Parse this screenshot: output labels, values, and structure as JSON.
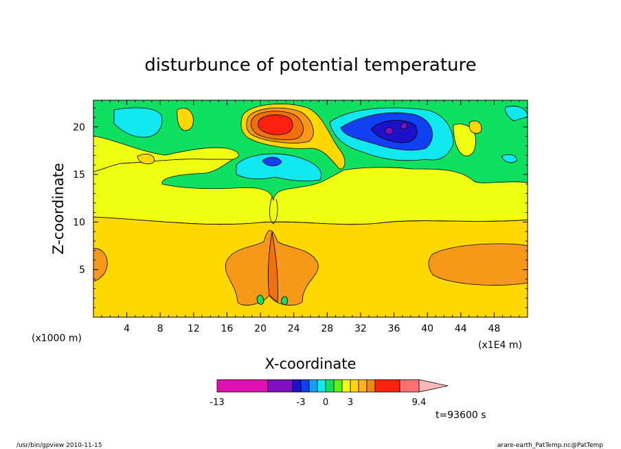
{
  "chart_data": {
    "type": "heatmap",
    "title": "disturbunce of potential temperature",
    "xlabel": "X-coordinate",
    "ylabel": "Z-coordinate",
    "x_unit_left": "(x1000 m)",
    "x_unit_right": "(x1E4 m)",
    "xlim": [
      0,
      52
    ],
    "ylim": [
      0,
      22.8
    ],
    "x_ticks": [
      4,
      8,
      12,
      16,
      20,
      24,
      28,
      32,
      36,
      40,
      44,
      48
    ],
    "y_ticks": [
      5,
      10,
      15,
      20
    ],
    "time_label": "t=93600 s",
    "colorbar": {
      "labels": [
        "-13",
        "-3",
        "0",
        "3",
        "9.4"
      ],
      "colors": [
        "#e010b0",
        "#8010c0",
        "#1c10c8",
        "#1040f0",
        "#10a0f8",
        "#10e8f0",
        "#10e060",
        "#60f010",
        "#f0ff10",
        "#ffd800",
        "#ffb020",
        "#f08810",
        "#ff2010",
        "#ff7070",
        "#ffb8b8"
      ]
    },
    "fields": {
      "level_colors": {
        "strong_negative": "#8010c0",
        "negative_3": "#1c10c8",
        "negative_2": "#1040f0",
        "negative_1": "#10e8f0",
        "near_zero": "#10e060",
        "slight_positive": "#f0ff10",
        "positive_1": "#ffd800",
        "positive_2": "#f89818",
        "positive_3": "#f07010",
        "strong_positive": "#ff2010"
      }
    }
  },
  "footer": {
    "left": "/usr/bin/gpview 2010-11-15",
    "right": "arare-earth_PatTemp.nc@PatTemp"
  }
}
